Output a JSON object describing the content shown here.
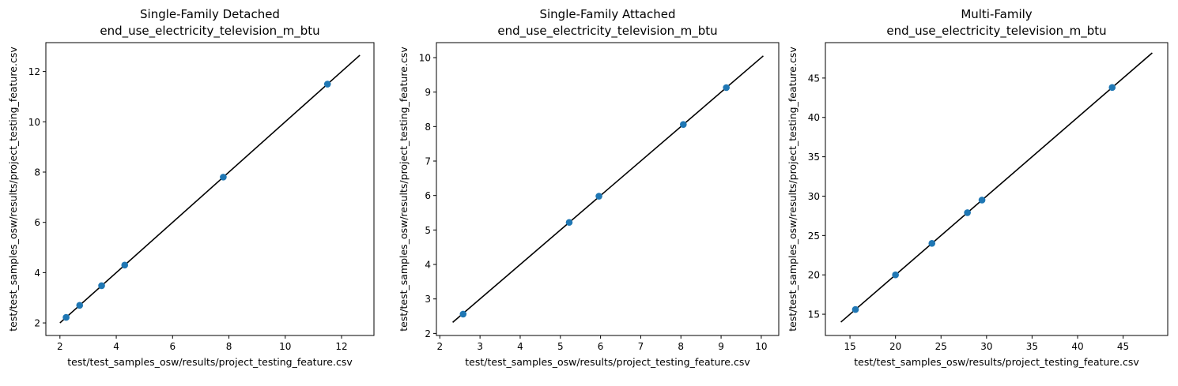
{
  "chart_data": [
    {
      "type": "scatter",
      "title": "Single-Family Detached",
      "subtitle": "end_use_electricity_television_m_btu",
      "xlabel": "test/test_samples_osw/results/project_testing_feature.csv",
      "ylabel": "test/test_samples_osw/results/project_testing_feature.csv",
      "xlim": [
        1.5,
        13.15
      ],
      "ylim": [
        1.5,
        13.15
      ],
      "xticks": [
        2,
        4,
        6,
        8,
        10,
        12
      ],
      "yticks": [
        2,
        4,
        6,
        8,
        10,
        12
      ],
      "points": [
        {
          "x": 2.22,
          "y": 2.22
        },
        {
          "x": 2.7,
          "y": 2.7
        },
        {
          "x": 3.48,
          "y": 3.48
        },
        {
          "x": 4.3,
          "y": 4.3
        },
        {
          "x": 7.8,
          "y": 7.8
        },
        {
          "x": 11.5,
          "y": 11.5
        }
      ],
      "reference_line": {
        "from": 2.0,
        "to": 12.65
      },
      "grid": false,
      "colors": {
        "points": "#1f77b4",
        "line": "#000000"
      }
    },
    {
      "type": "scatter",
      "title": "Single-Family Attached",
      "subtitle": "end_use_electricity_television_m_btu",
      "xlabel": "test/test_samples_osw/results/project_testing_feature.csv",
      "ylabel": "test/test_samples_osw/results/project_testing_feature.csv",
      "xlim": [
        1.915,
        10.435
      ],
      "ylim": [
        1.94,
        10.435
      ],
      "xticks": [
        2,
        3,
        4,
        5,
        6,
        7,
        8,
        9,
        10
      ],
      "yticks": [
        2,
        3,
        4,
        5,
        6,
        7,
        8,
        9,
        10
      ],
      "points": [
        {
          "x": 2.58,
          "y": 2.56
        },
        {
          "x": 5.22,
          "y": 5.22
        },
        {
          "x": 5.96,
          "y": 5.98
        },
        {
          "x": 8.06,
          "y": 8.06
        },
        {
          "x": 9.13,
          "y": 9.13
        }
      ],
      "reference_line": {
        "from": 2.32,
        "to": 10.05
      },
      "grid": false,
      "colors": {
        "points": "#1f77b4",
        "line": "#000000"
      }
    },
    {
      "type": "scatter",
      "title": "Multi-Family",
      "subtitle": "end_use_electricity_television_m_btu",
      "xlabel": "test/test_samples_osw/results/project_testing_feature.csv",
      "ylabel": "test/test_samples_osw/results/project_testing_feature.csv",
      "xlim": [
        12.3,
        49.9
      ],
      "ylim": [
        12.3,
        49.5
      ],
      "xticks": [
        15,
        20,
        25,
        30,
        35,
        40,
        45
      ],
      "yticks": [
        15,
        20,
        25,
        30,
        35,
        40,
        45
      ],
      "points": [
        {
          "x": 15.6,
          "y": 15.6
        },
        {
          "x": 20.0,
          "y": 20.0
        },
        {
          "x": 24.0,
          "y": 24.0
        },
        {
          "x": 27.9,
          "y": 27.9
        },
        {
          "x": 29.5,
          "y": 29.5
        },
        {
          "x": 43.8,
          "y": 43.8
        }
      ],
      "reference_line": {
        "from": 14.0,
        "to": 48.2
      },
      "grid": false,
      "colors": {
        "points": "#1f77b4",
        "line": "#000000"
      }
    }
  ]
}
